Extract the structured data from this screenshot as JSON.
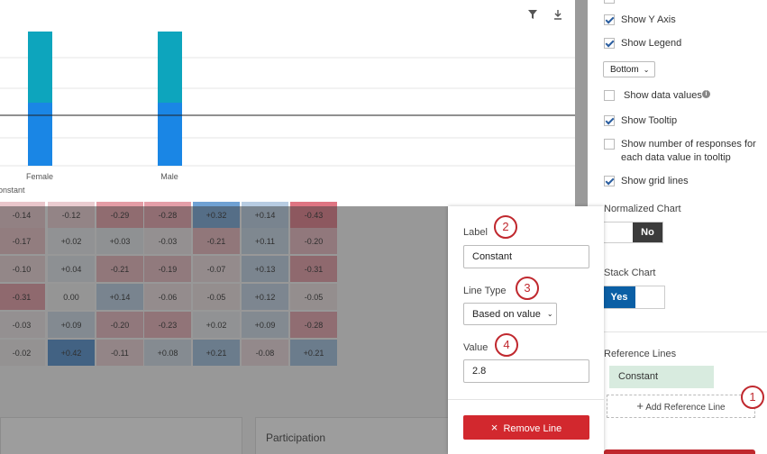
{
  "chart": {
    "categories": [
      "Female",
      "Male"
    ],
    "reference_label": "onstant"
  },
  "table": {
    "rows": [
      [
        "-0.14",
        "-0.12",
        "-0.29",
        "-0.28",
        "+0.32",
        "+0.14",
        "-0.43"
      ],
      [
        "-0.17",
        "+0.02",
        "+0.03",
        "-0.03",
        "-0.21",
        "+0.11",
        "-0.20"
      ],
      [
        "-0.10",
        "+0.04",
        "-0.21",
        "-0.19",
        "-0.07",
        "+0.13",
        "-0.31"
      ],
      [
        "-0.31",
        "0.00",
        "+0.14",
        "-0.06",
        "-0.05",
        "+0.12",
        "-0.05"
      ],
      [
        "-0.03",
        "+0.09",
        "-0.20",
        "-0.23",
        "+0.02",
        "+0.09",
        "-0.28"
      ],
      [
        "-0.02",
        "+0.42",
        "-0.11",
        "+0.08",
        "+0.21",
        "-0.08",
        "+0.21"
      ]
    ]
  },
  "cards": {
    "participation": "Participation"
  },
  "settings": {
    "options": [
      {
        "label": "Show Y Axis",
        "checked": true
      },
      {
        "label": "Show Legend",
        "checked": true
      },
      {
        "label": "Show data values",
        "checked": false
      },
      {
        "label": "Show Tooltip",
        "checked": true
      },
      {
        "label": "Show number of responses for each data value in tooltip",
        "checked": false
      },
      {
        "label": "Show grid lines",
        "checked": true
      }
    ],
    "legend_position": "Bottom",
    "normalized_chart": {
      "label": "Normalized Chart",
      "value": "No"
    },
    "stack_chart": {
      "label": "Stack Chart",
      "value": "Yes"
    },
    "reference_lines": {
      "label": "Reference Lines",
      "items": [
        "Constant"
      ],
      "add": "Add Reference Line"
    }
  },
  "popover": {
    "label": {
      "label": "Label",
      "value": "Constant"
    },
    "line_type": {
      "label": "Line Type",
      "value": "Based on value"
    },
    "value": {
      "label": "Value",
      "value": "2.8"
    },
    "remove": "Remove Line"
  },
  "badges": [
    "1",
    "2",
    "3",
    "4"
  ]
}
